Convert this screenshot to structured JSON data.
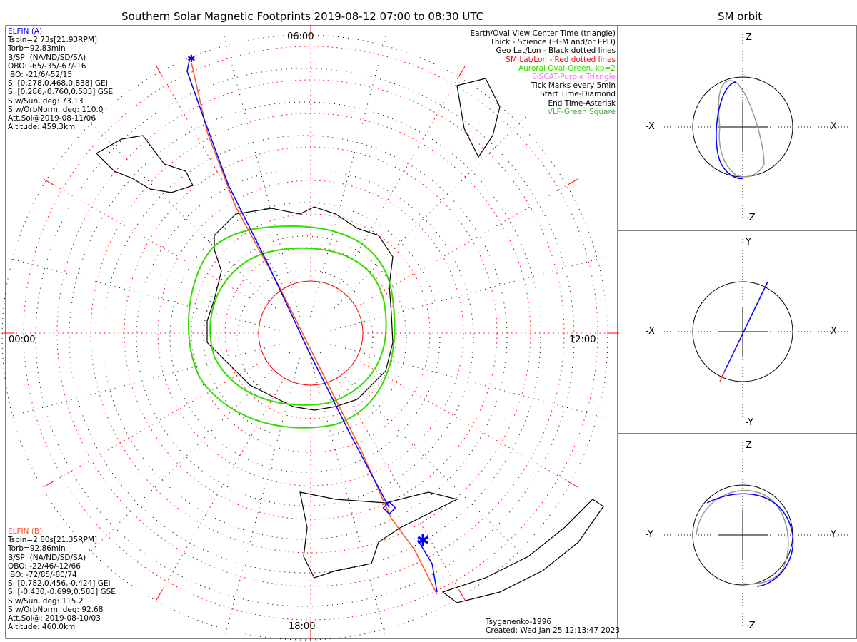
{
  "title": "Southern Solar Magnetic Footprints 2019-08-12 07:00 to 08:30 UTC",
  "orbit_title": "SM orbit",
  "time_labels": {
    "top": "06:00",
    "left": "00:00",
    "right": "12:00",
    "bottom": "18:00"
  },
  "elfin_a": {
    "name": "ELFIN (A)",
    "color": "#0000ff",
    "lines": [
      "Tspin=2.73s[21.93RPM]",
      "Torb=92.83min",
      "B/SP: (NA/ND/SD/SA)",
      "OBO: -65/-35/-67/-16",
      "IBO: -21/6/-52/15",
      "S: [0.278,0.468,0.838] GEI",
      "S: [0.286,-0.760,0.583] GSE",
      "S w/Sun, deg: 73.13",
      "S w/OrbNorm, deg: 110.0",
      "Att.Sol@2019-08-11/06",
      "Altitude: 459.3km"
    ]
  },
  "elfin_b": {
    "name": "ELFIN (B)",
    "color": "#ff5030",
    "lines": [
      "Tspin=2.80s[21.35RPM]",
      "Torb=92.86min",
      "B/SP: (NA/ND/SD/SA)",
      "OBO: -22/46/-12/66",
      "IBO: -72/85/-80/74",
      "S: [0.782,0.456,-0.424] GEI",
      "S: [-0.430,-0.699,0.583] GSE",
      "S w/Sun, deg: 115.2",
      "S w/OrbNorm, deg: 92.68",
      "Att.Sol@: 2019-08-10/03",
      "Altitude: 460.0km"
    ]
  },
  "legend": [
    {
      "text": "Earth/Oval View Center Time (triangle)",
      "color": "#000000"
    },
    {
      "text": "Thick - Science (FGM and/or EPD)",
      "color": "#000000"
    },
    {
      "text": "Geo Lat/Lon - Black dotted lines",
      "color": "#000000"
    },
    {
      "text": "SM Lat/Lon - Red dotted lines",
      "color": "#ff0000"
    },
    {
      "text": "Auroral Oval-Green, kp=2",
      "color": "#33dd00"
    },
    {
      "text": "EISCAT-Purple Triangle",
      "color": "#ee77ee"
    },
    {
      "text": "Tick Marks every 5min",
      "color": "#000000"
    },
    {
      "text": "Start Time-Diamond",
      "color": "#000000"
    },
    {
      "text": "End Time-Asterisk",
      "color": "#000000"
    },
    {
      "text": "VLF-Green Square",
      "color": "#44aa44"
    }
  ],
  "footer": {
    "model": "Tsyganenko-1996",
    "created": "Created: Wed Jan 25 12:13:47 2023"
  },
  "orbit_panels": [
    {
      "top": "Z",
      "bottom": "-Z",
      "left": "-X",
      "right": "X"
    },
    {
      "top": "Y",
      "bottom": "-Y",
      "left": "-X",
      "right": "X"
    },
    {
      "top": "Z",
      "bottom": "-Z",
      "left": "-Y",
      "right": "Y"
    }
  ]
}
